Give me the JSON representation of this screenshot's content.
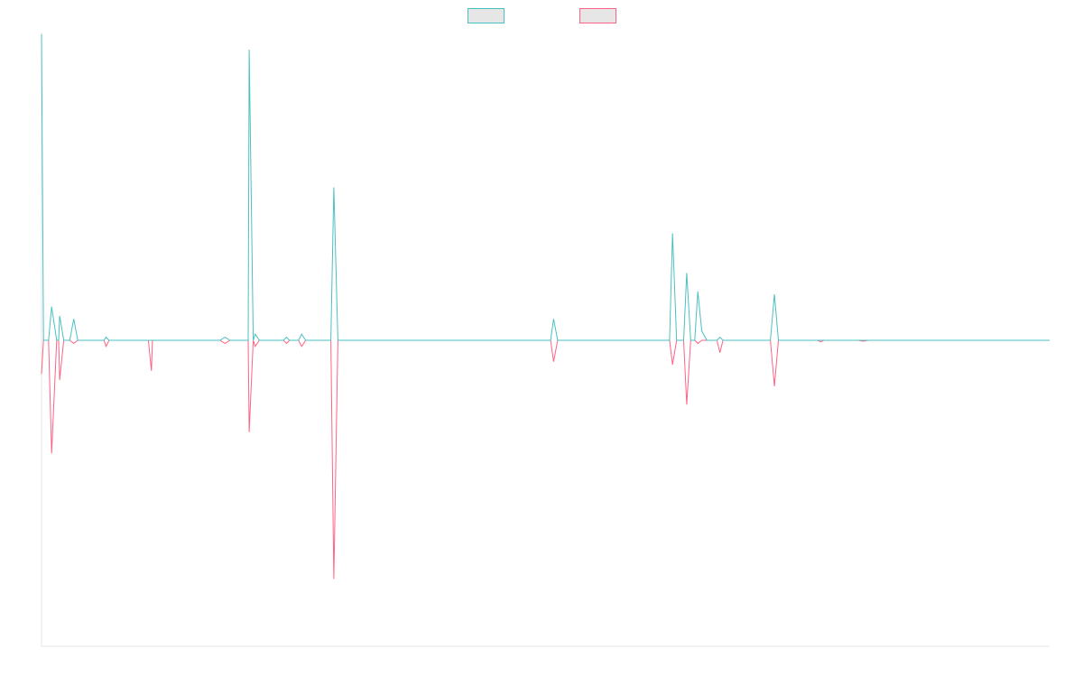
{
  "chart_data": {
    "type": "line",
    "title": "",
    "xlabel": "",
    "ylabel": "",
    "legend_position": "top-center",
    "grid": false,
    "x_count": 60,
    "ylim": [
      -1.0,
      1.0
    ],
    "series": [
      {
        "color": "#4bc0c0",
        "legend_fill": "#e6e6e6",
        "values": [
          1.0,
          0.11,
          0.08,
          0.07,
          0.0,
          0.0,
          0.01,
          0.0,
          0.0,
          0.01,
          0.0,
          0.0,
          0.02,
          0.0,
          0.0,
          0.0,
          0.0,
          0.0,
          0.0,
          0.01,
          0.95,
          0.02,
          0.0,
          0.01,
          0.02,
          0.02,
          0.0,
          0.5,
          0.0,
          0.0,
          0.0,
          0.0,
          0.0,
          0.0,
          0.0,
          0.0,
          0.0,
          0.0,
          0.0,
          0.0,
          0.0,
          0.0,
          0.0,
          0.0,
          0.0,
          0.0,
          0.0,
          0.0,
          0.0,
          0.0,
          0.0,
          0.0,
          0.0,
          0.0,
          0.0,
          0.0,
          0.0,
          0.0,
          0.0,
          0.0
        ]
      },
      {
        "color": "#ff6384",
        "legend_fill": "#e6e6e6",
        "values": [
          -0.11,
          -0.37,
          -0.13,
          -0.01,
          0.0,
          0.0,
          -0.02,
          0.0,
          0.0,
          -0.01,
          0.0,
          0.0,
          -0.1,
          0.0,
          0.0,
          0.0,
          0.0,
          -0.01,
          0.0,
          -0.01,
          -0.3,
          -0.02,
          0.0,
          0.0,
          -0.02,
          -0.02,
          0.0,
          -0.78,
          0.0,
          0.0,
          0.0,
          0.0,
          0.0,
          0.0,
          0.0,
          0.0,
          0.0,
          0.0,
          0.0,
          0.0,
          0.0,
          0.0,
          0.0,
          0.0,
          0.0,
          0.0,
          0.0,
          0.0,
          0.0,
          0.0,
          0.0,
          0.0,
          0.0,
          0.0,
          0.0,
          0.0,
          0.0,
          0.0,
          0.0,
          0.0
        ]
      }
    ]
  }
}
